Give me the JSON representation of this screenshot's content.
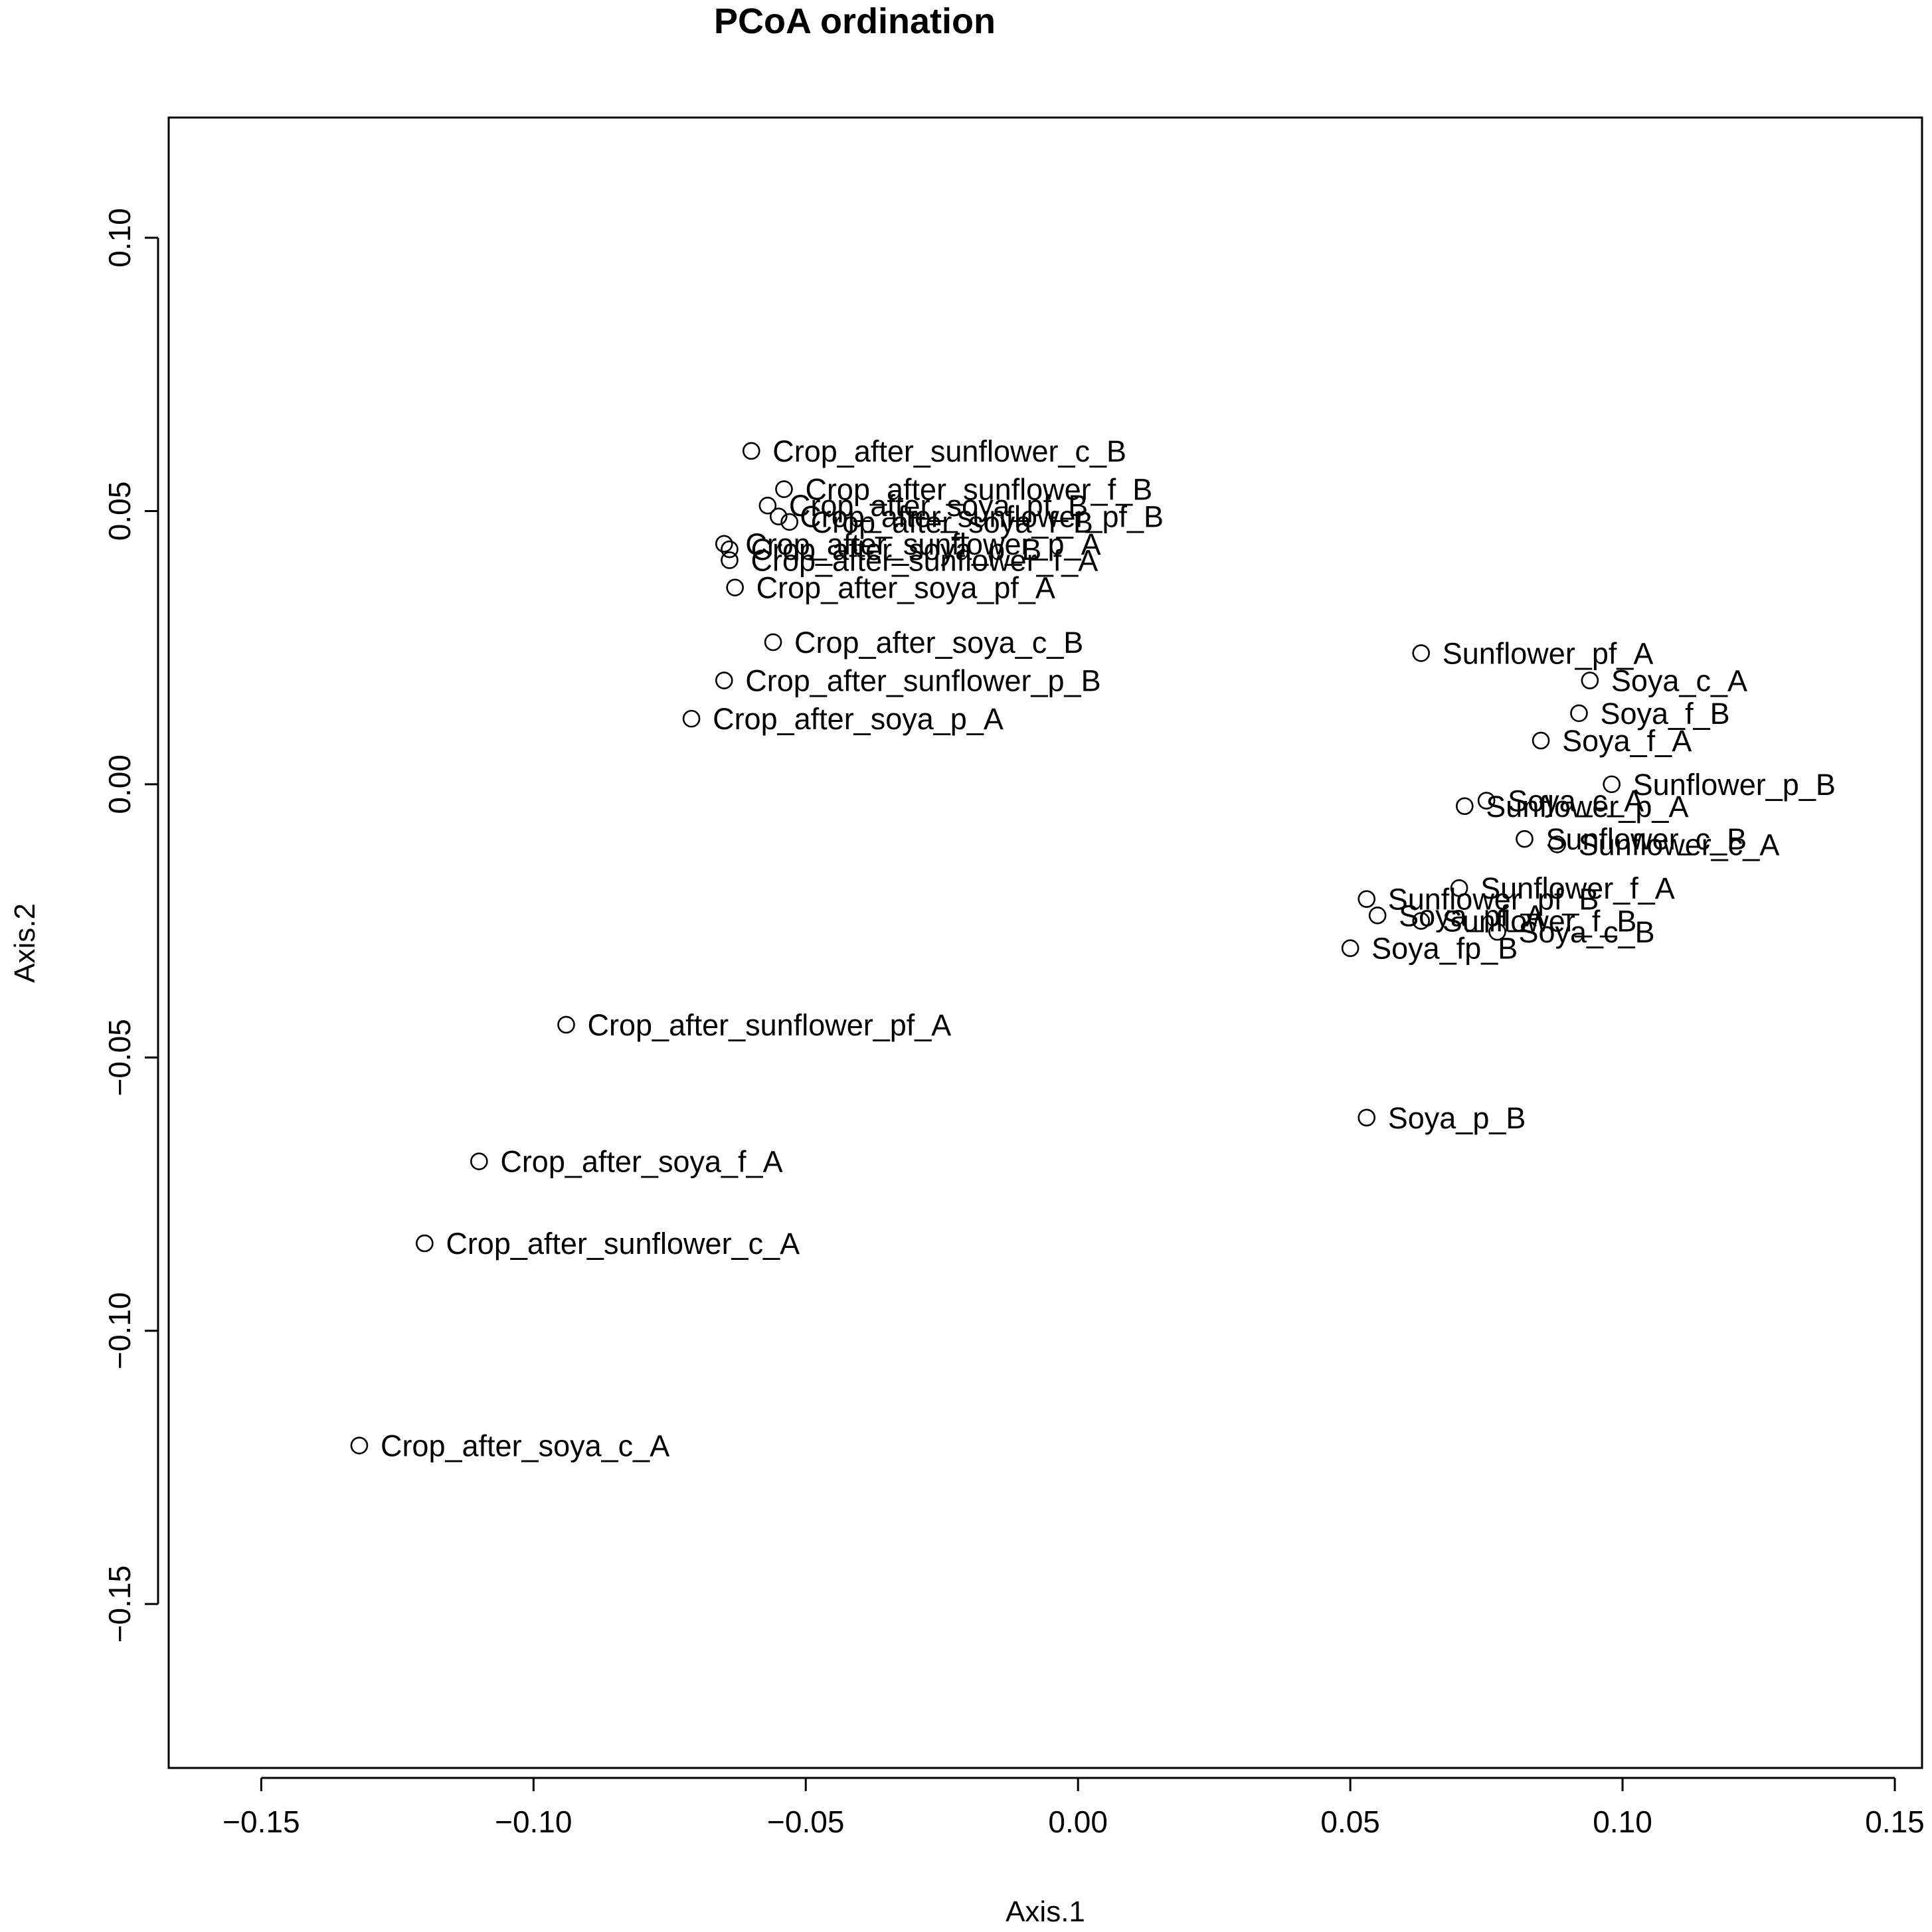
{
  "chart_data": {
    "type": "scatter",
    "title": "PCoA ordination",
    "xlabel": "Axis.1",
    "ylabel": "Axis.2",
    "xlim": [
      -0.167,
      0.155
    ],
    "ylim": [
      -0.18,
      0.122
    ],
    "xticks": [
      -0.15,
      -0.1,
      -0.05,
      0.0,
      0.05,
      0.1,
      0.15
    ],
    "xtick_labels": [
      "−0.15",
      "−0.10",
      "−0.05",
      "0.00",
      "0.05",
      "0.10",
      "0.15"
    ],
    "yticks": [
      -0.15,
      -0.1,
      -0.05,
      0.0,
      0.05,
      0.1
    ],
    "ytick_labels": [
      "−0.15",
      "−0.10",
      "−0.05",
      "0.00",
      "0.05",
      "0.10"
    ],
    "grid": false,
    "points": [
      {
        "label": "Crop_after_sunflower_c_B",
        "x": -0.06,
        "y": 0.061
      },
      {
        "label": "Crop_after_sunflower_f_B",
        "x": -0.054,
        "y": 0.054
      },
      {
        "label": "Crop_after_soya_pf_B",
        "x": -0.057,
        "y": 0.051
      },
      {
        "label": "Crop_after_sunflower_pf_B",
        "x": -0.055,
        "y": 0.049
      },
      {
        "label": "Crop_after_soya_f_B",
        "x": -0.053,
        "y": 0.048
      },
      {
        "label": "Crop_after_sunflower_p_A",
        "x": -0.065,
        "y": 0.044
      },
      {
        "label": "Crop_after_soya_p_B",
        "x": -0.064,
        "y": 0.043
      },
      {
        "label": "Crop_after_sunflower_f_A",
        "x": -0.064,
        "y": 0.041
      },
      {
        "label": "Crop_after_soya_pf_A",
        "x": -0.063,
        "y": 0.036
      },
      {
        "label": "Crop_after_soya_c_B",
        "x": -0.056,
        "y": 0.026
      },
      {
        "label": "Crop_after_sunflower_p_B",
        "x": -0.065,
        "y": 0.019
      },
      {
        "label": "Crop_after_soya_p_A",
        "x": -0.071,
        "y": 0.012
      },
      {
        "label": "Crop_after_sunflower_pf_A",
        "x": -0.094,
        "y": -0.044
      },
      {
        "label": "Crop_after_soya_f_A",
        "x": -0.11,
        "y": -0.069
      },
      {
        "label": "Crop_after_sunflower_c_A",
        "x": -0.12,
        "y": -0.084
      },
      {
        "label": "Crop_after_soya_c_A",
        "x": -0.132,
        "y": -0.121
      },
      {
        "label": "Sunflower_pf_A",
        "x": 0.063,
        "y": 0.024
      },
      {
        "label": "Soya_c_A",
        "x": 0.094,
        "y": 0.019
      },
      {
        "label": "Soya_f_B",
        "x": 0.092,
        "y": 0.013
      },
      {
        "label": "Soya_f_A",
        "x": 0.085,
        "y": 0.008
      },
      {
        "label": "Sunflower_p_B",
        "x": 0.098,
        "y": 0.0
      },
      {
        "label": "Soya_c_A",
        "x": 0.075,
        "y": -0.003
      },
      {
        "label": "Sunflower_p_A",
        "x": 0.071,
        "y": -0.004
      },
      {
        "label": "Sunflower_c_B",
        "x": 0.082,
        "y": -0.01
      },
      {
        "label": "Sunflower_c_A",
        "x": 0.088,
        "y": -0.011
      },
      {
        "label": "Sunflower_f_A",
        "x": 0.07,
        "y": -0.019
      },
      {
        "label": "Sunflower_pf_B",
        "x": 0.053,
        "y": -0.021
      },
      {
        "label": "Soya_pf_A",
        "x": 0.055,
        "y": -0.024
      },
      {
        "label": "Sunflower_f_B",
        "x": 0.063,
        "y": -0.025
      },
      {
        "label": "Soya_c_B",
        "x": 0.077,
        "y": -0.027
      },
      {
        "label": "Soya_fp_B",
        "x": 0.05,
        "y": -0.03
      },
      {
        "label": "Soya_p_B",
        "x": 0.053,
        "y": -0.061
      }
    ]
  }
}
